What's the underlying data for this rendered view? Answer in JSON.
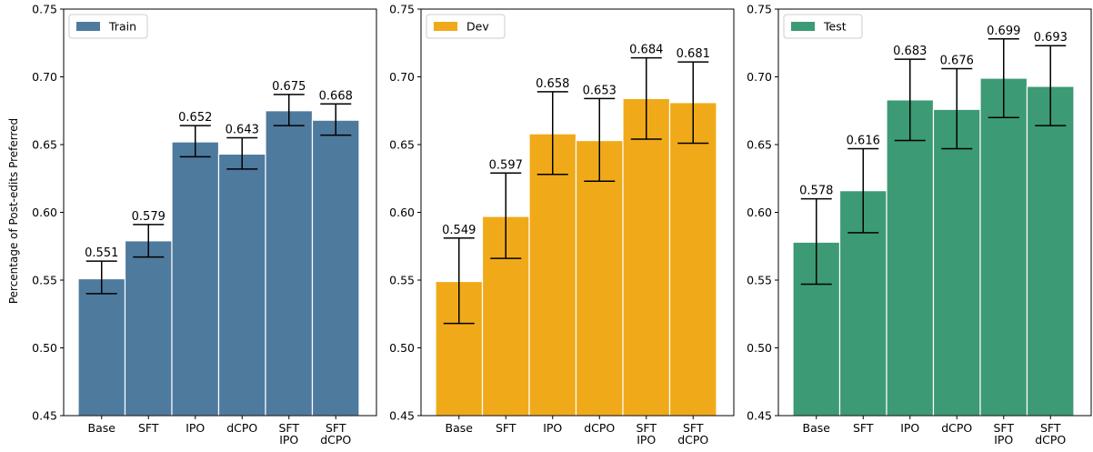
{
  "figure": {
    "ylabel": "Percentage of Post-edits Preferred"
  },
  "chart_data": [
    {
      "type": "bar",
      "legend": "Train",
      "legend_placement": "top-left",
      "color": "#4e7a9e",
      "categories": [
        [
          "Base"
        ],
        [
          "SFT"
        ],
        [
          "IPO"
        ],
        [
          "dCPO"
        ],
        [
          "SFT",
          "IPO"
        ],
        [
          "SFT",
          "dCPO"
        ]
      ],
      "values": [
        0.551,
        0.579,
        0.652,
        0.643,
        0.675,
        0.668
      ],
      "labels": [
        "0.551",
        "0.579",
        "0.652",
        "0.643",
        "0.675",
        "0.668"
      ],
      "error_low": [
        0.54,
        0.567,
        0.641,
        0.632,
        0.664,
        0.657
      ],
      "error_high": [
        0.564,
        0.591,
        0.664,
        0.655,
        0.687,
        0.68
      ],
      "ylim": [
        0.45,
        0.75
      ],
      "yticks": [
        "0.45",
        "0.50",
        "0.55",
        "0.60",
        "0.65",
        "0.70",
        "0.75"
      ],
      "ylabel": "Percentage of Post-edits Preferred",
      "grid": false
    },
    {
      "type": "bar",
      "legend": "Dev",
      "legend_placement": "top-left",
      "color": "#f0aa19",
      "categories": [
        [
          "Base"
        ],
        [
          "SFT"
        ],
        [
          "IPO"
        ],
        [
          "dCPO"
        ],
        [
          "SFT",
          "IPO"
        ],
        [
          "SFT",
          "dCPO"
        ]
      ],
      "values": [
        0.549,
        0.597,
        0.658,
        0.653,
        0.684,
        0.681
      ],
      "labels": [
        "0.549",
        "0.597",
        "0.658",
        "0.653",
        "0.684",
        "0.681"
      ],
      "error_low": [
        0.518,
        0.566,
        0.628,
        0.623,
        0.654,
        0.651
      ],
      "error_high": [
        0.581,
        0.629,
        0.689,
        0.684,
        0.714,
        0.711
      ],
      "ylim": [
        0.45,
        0.75
      ],
      "yticks": [
        "0.45",
        "0.50",
        "0.55",
        "0.60",
        "0.65",
        "0.70",
        "0.75"
      ],
      "grid": false
    },
    {
      "type": "bar",
      "legend": "Test",
      "legend_placement": "top-left",
      "color": "#3c9a74",
      "categories": [
        [
          "Base"
        ],
        [
          "SFT"
        ],
        [
          "IPO"
        ],
        [
          "dCPO"
        ],
        [
          "SFT",
          "IPO"
        ],
        [
          "SFT",
          "dCPO"
        ]
      ],
      "values": [
        0.578,
        0.616,
        0.683,
        0.676,
        0.699,
        0.693
      ],
      "labels": [
        "0.578",
        "0.616",
        "0.683",
        "0.676",
        "0.699",
        "0.693"
      ],
      "error_low": [
        0.547,
        0.585,
        0.653,
        0.647,
        0.67,
        0.664
      ],
      "error_high": [
        0.61,
        0.647,
        0.713,
        0.706,
        0.728,
        0.723
      ],
      "ylim": [
        0.45,
        0.75
      ],
      "yticks": [
        "0.45",
        "0.50",
        "0.55",
        "0.60",
        "0.65",
        "0.70",
        "0.75"
      ],
      "grid": false
    }
  ]
}
